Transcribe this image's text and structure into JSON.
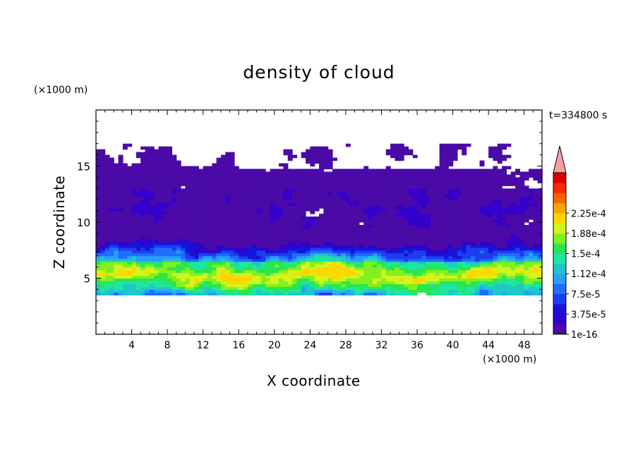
{
  "chart_data": {
    "type": "heatmap",
    "title": "density of cloud",
    "xlabel": "X coordinate",
    "ylabel": "Z coordinate",
    "x_unit_label": "(×1000 m)",
    "y_unit_label": "(×1000 m)",
    "time_label": "t=334800 s",
    "xlim": [
      0,
      50
    ],
    "ylim": [
      0,
      20
    ],
    "x_ticks": [
      4,
      8,
      12,
      16,
      20,
      24,
      28,
      32,
      36,
      40,
      44,
      48
    ],
    "y_ticks": [
      5,
      10,
      15
    ],
    "colorbar": {
      "levels": [
        "1e-16",
        "3.75e-5",
        "7.5e-5",
        "1.12e-4",
        "1.5e-4",
        "1.88e-4",
        "2.25e-4"
      ],
      "colors": [
        "#4b0aa8",
        "#3300cc",
        "#1414d8",
        "#1e3cf0",
        "#1e6eff",
        "#28a0ff",
        "#1ec8c8",
        "#1ee6a0",
        "#28e650",
        "#82f01e",
        "#d2f51e",
        "#ffd700",
        "#ffa500",
        "#ff6400",
        "#ff2800",
        "#dc0000",
        "#f5a0a0"
      ],
      "extend": "max"
    },
    "field_description_levels": {
      "upper_cloud_top_z": 17,
      "main_layer_z": [
        3.5,
        7.5
      ],
      "max_band_z": [
        4.5,
        6.5
      ]
    }
  }
}
